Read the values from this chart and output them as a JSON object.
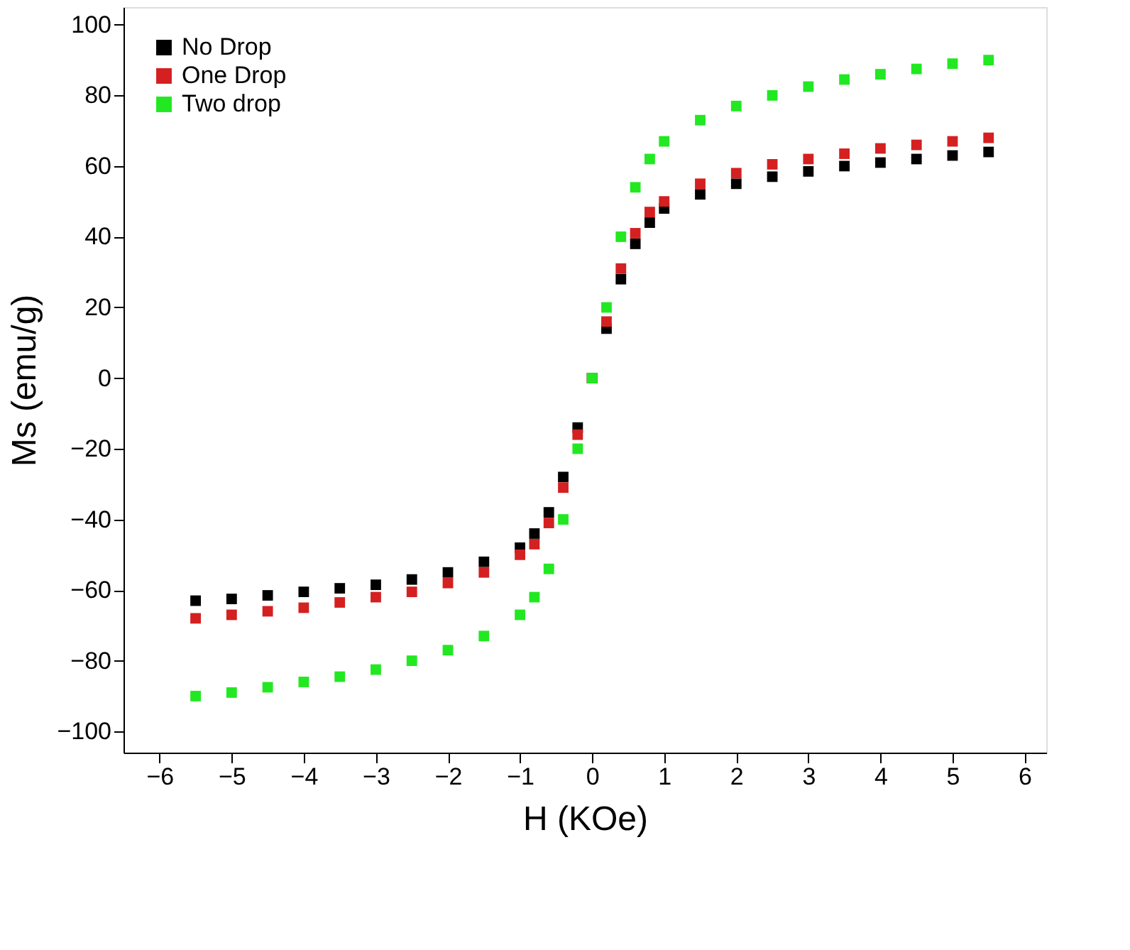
{
  "chart_data": {
    "type": "scatter",
    "xlabel": "H (KOe)",
    "ylabel": "Ms (emu/g)",
    "x": [
      -5.5,
      -5,
      -4.5,
      -4,
      -3.5,
      -3,
      -2.5,
      -2,
      -1.5,
      -1,
      -0.8,
      -0.6,
      -0.4,
      -0.2,
      0,
      0.2,
      0.4,
      0.6,
      0.8,
      1,
      1.5,
      2,
      2.5,
      3,
      3.5,
      4,
      4.5,
      5,
      5.5
    ],
    "series": [
      {
        "name": "No Drop",
        "color": "#000000",
        "values": [
          -63,
          -62.5,
          -61.5,
          -60.5,
          -59.5,
          -58.5,
          -57,
          -55,
          -52,
          -48,
          -44,
          -38,
          -28,
          -14,
          0,
          14,
          28,
          38,
          44,
          48,
          52,
          55,
          57,
          58.5,
          60,
          61,
          62,
          63,
          64
        ]
      },
      {
        "name": "One Drop",
        "color": "#d42020",
        "values": [
          -68,
          -67,
          -66,
          -65,
          -63.5,
          -62,
          -60.5,
          -58,
          -55,
          -50,
          -47,
          -41,
          -31,
          -16,
          0,
          16,
          31,
          41,
          47,
          50,
          55,
          58,
          60.5,
          62,
          63.5,
          65,
          66,
          67,
          68
        ]
      },
      {
        "name": "Two drop",
        "color": "#22e822",
        "values": [
          -90,
          -89,
          -87.5,
          -86,
          -84.5,
          -82.5,
          -80,
          -77,
          -73,
          -67,
          -62,
          -54,
          -40,
          -20,
          0,
          20,
          40,
          54,
          62,
          67,
          73,
          77,
          80,
          82.5,
          84.5,
          86,
          87.5,
          89,
          90
        ]
      }
    ],
    "xlim": [
      -6.5,
      6.3
    ],
    "ylim": [
      -106,
      105
    ],
    "xticks": [
      -6,
      -5,
      -4,
      -3,
      -2,
      -1,
      0,
      1,
      2,
      3,
      4,
      5,
      6
    ],
    "yticks": [
      -100,
      -80,
      -60,
      -40,
      -20,
      0,
      20,
      40,
      60,
      80,
      100
    ],
    "marker": "square",
    "legend": "top left",
    "grid": false
  }
}
